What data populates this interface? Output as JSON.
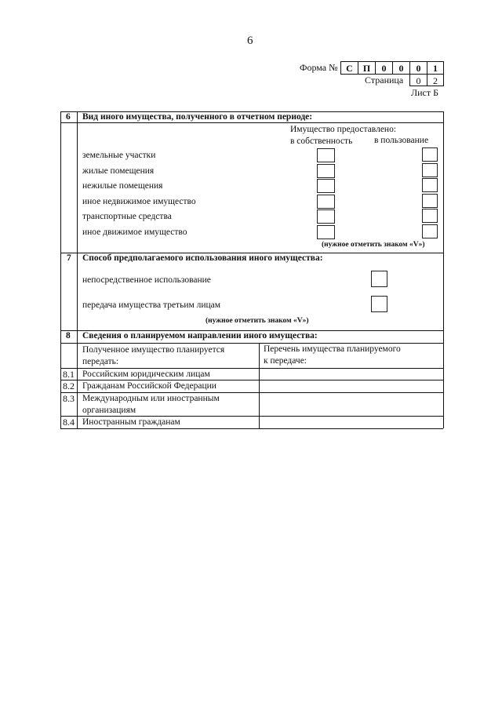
{
  "page_number": "6",
  "header": {
    "form_label": "Форма №",
    "form_code": [
      "С",
      "П",
      "0",
      "0",
      "0",
      "1"
    ],
    "page_label": "Страница",
    "page_code": [
      "0",
      "2"
    ],
    "sheet": "Лист Б"
  },
  "section6": {
    "num": "6",
    "title": "Вид иного имущества, полученного в отчетном периоде:",
    "provided_label": "Имущество предоставлено:",
    "col_ownership": "в собственность",
    "col_use": "в пользование",
    "items": [
      "земельные участки",
      "жилые помещения",
      "нежилые помещения",
      "иное недвижимое имущество",
      "транспортные средства",
      "иное движимое имущество"
    ],
    "note": "(нужное отметить знаком «V»)"
  },
  "section7": {
    "num": "7",
    "title": "Способ предполагаемого использования иного имущества:",
    "items": [
      "непосредственное использование",
      "передача имущества третьим лицам"
    ],
    "note": "(нужное отметить знаком «V»)"
  },
  "section8": {
    "num": "8",
    "title": "Сведения о планируемом направлении иного имущества:",
    "col1_header": [
      "Полученное имущество планируется",
      "передать:"
    ],
    "col2_header": [
      "Перечень имущества планируемого",
      "к передаче:"
    ],
    "rows": [
      {
        "num": "8.1",
        "label": [
          "Российским юридическим лицам"
        ],
        "value": ""
      },
      {
        "num": "8.2",
        "label": [
          "Гражданам Российской Федерации"
        ],
        "value": ""
      },
      {
        "num": "8.3",
        "label": [
          "Международным или иностранным",
          "организациям"
        ],
        "value": ""
      },
      {
        "num": "8.4",
        "label": [
          "Иностранным гражданам"
        ],
        "value": ""
      }
    ]
  }
}
